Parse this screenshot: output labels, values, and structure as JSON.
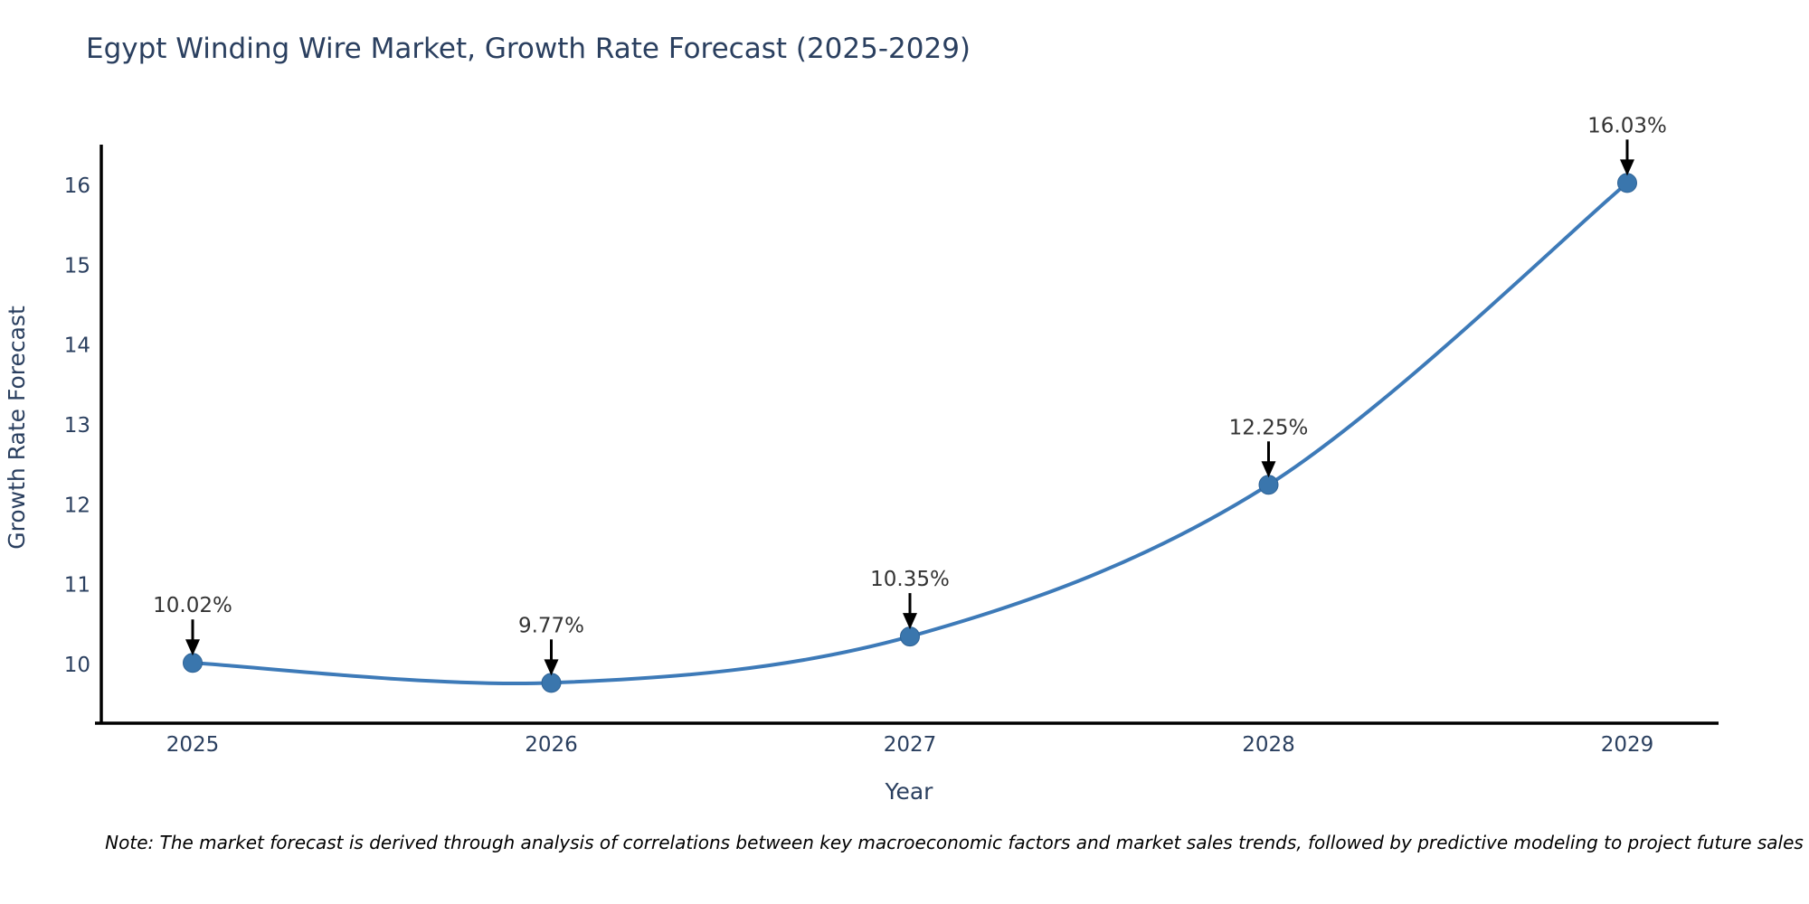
{
  "figure": {
    "title": "Egypt Winding Wire Market, Growth Rate Forecast (2025-2029)",
    "note": "Note: The market forecast is derived through analysis of correlations between key macroeconomic factors and market sales trends, followed by predictive modeling to project future sales"
  },
  "chart_data": {
    "type": "line",
    "title": "Egypt Winding Wire Market, Growth Rate Forecast (2025-2029)",
    "xlabel": "Year",
    "ylabel": "Growth Rate Forecast",
    "x": [
      2025,
      2026,
      2027,
      2028,
      2029
    ],
    "series": [
      {
        "name": "Growth Rate Forecast",
        "values": [
          10.02,
          9.77,
          10.35,
          12.25,
          16.03
        ]
      }
    ],
    "point_labels": [
      "10.02%",
      "9.77%",
      "10.35%",
      "12.25%",
      "16.03%"
    ],
    "yticks": [
      10,
      11,
      12,
      13,
      14,
      15,
      16
    ],
    "xlim": [
      2024.75,
      2029.26
    ],
    "ylim": [
      9.26,
      16.52
    ],
    "grid": false,
    "legend": "none",
    "line_shape": "spline",
    "annotation_style": "value label with black down-arrow above each point",
    "colors": {
      "line": "#3d7ab8",
      "marker": "#3a76ad",
      "marker_edge": "#2f6396",
      "axis_line": "#000000",
      "tick_text": "#2a3f5f",
      "axis_title_text": "#2a3f5f",
      "title_text": "#2a3f5f",
      "annotation_text": "#333333",
      "arrow": "#000000",
      "note_text": "#000000",
      "background": "#ffffff"
    }
  }
}
